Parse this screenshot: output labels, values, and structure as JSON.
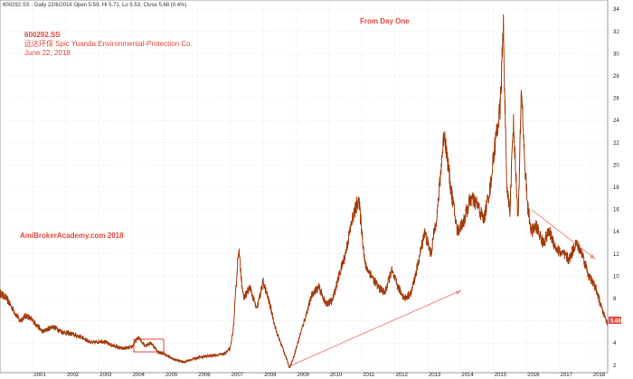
{
  "header_line": "600292.SS - Daily 22/6/2018 Open 5.59, Hi 5.71, Lo 5.53, Close 5.68 (0.4%)",
  "annotations": {
    "ticker": "600292.SS",
    "company": "远达环保 Spic Yuanda Environmental-Protection Co.",
    "date": "June 22, 2018",
    "subtitle": "From Day One",
    "watermark": "AmiBrokerAcademy.com  2018"
  },
  "last_price_label": "5.68",
  "colors": {
    "price_line": "#a33a0a",
    "annotation": "#e8453c",
    "grid": "#d4d4d4",
    "price_box": "#e8453c"
  },
  "chart_data": {
    "type": "line",
    "title": "",
    "xlabel": "",
    "ylabel": "",
    "ylim": [
      1.5,
      34.5
    ],
    "y_ticks": [
      2,
      4,
      6,
      8,
      10,
      12,
      14,
      16,
      18,
      20,
      22,
      24,
      26,
      28,
      30,
      32,
      34
    ],
    "x_ticks": [
      "2001",
      "2002",
      "2003",
      "2004",
      "2005",
      "2006",
      "2007",
      "2008",
      "2009",
      "2010",
      "2011",
      "2012",
      "2013",
      "2014",
      "2015",
      "2016",
      "2017",
      "2018"
    ],
    "grid": true,
    "series": [
      {
        "x": [
          2000.0,
          2000.2,
          2000.4,
          2000.6,
          2000.8,
          2001.0,
          2001.3,
          2001.6,
          2001.9,
          2002.2,
          2002.5,
          2002.8,
          2003.1,
          2003.4,
          2003.7,
          2004.0,
          2004.2,
          2004.4,
          2004.6,
          2004.8,
          2005.0,
          2005.3,
          2005.6,
          2005.9,
          2006.2,
          2006.5,
          2006.8,
          2007.0,
          2007.1,
          2007.25,
          2007.4,
          2007.6,
          2007.8,
          2008.0,
          2008.2,
          2008.4,
          2008.6,
          2008.8,
          2008.9,
          2009.1,
          2009.3,
          2009.5,
          2009.7,
          2009.9,
          2010.1,
          2010.3,
          2010.5,
          2010.7,
          2010.9,
          2011.1,
          2011.3,
          2011.5,
          2011.7,
          2011.9,
          2012.1,
          2012.3,
          2012.5,
          2012.7,
          2012.9,
          2013.1,
          2013.3,
          2013.5,
          2013.7,
          2013.9,
          2014.1,
          2014.3,
          2014.5,
          2014.7,
          2014.9,
          2015.05,
          2015.2,
          2015.3,
          2015.4,
          2015.5,
          2015.6,
          2015.75,
          2015.85,
          2015.95,
          2016.05,
          2016.15,
          2016.3,
          2016.5,
          2016.7,
          2016.9,
          2017.1,
          2017.3,
          2017.5,
          2017.7,
          2017.9,
          2018.1,
          2018.3,
          2018.47
        ],
        "values": [
          8.5,
          8.0,
          7.0,
          6.0,
          6.5,
          6.0,
          5.0,
          5.5,
          5.0,
          4.8,
          4.5,
          4.0,
          4.2,
          3.8,
          3.5,
          3.6,
          4.5,
          3.8,
          4.0,
          3.2,
          3.0,
          2.5,
          2.3,
          2.6,
          2.8,
          2.9,
          3.0,
          3.5,
          5.5,
          12.5,
          8.0,
          9.0,
          7.0,
          9.5,
          7.5,
          5.0,
          3.5,
          1.8,
          2.5,
          4.5,
          6.5,
          8.5,
          9.0,
          7.5,
          7.8,
          10.0,
          12.0,
          15.0,
          17.0,
          11.0,
          10.0,
          9.0,
          8.5,
          10.5,
          9.0,
          8.0,
          8.5,
          11.0,
          14.0,
          12.0,
          16.0,
          23.0,
          18.0,
          14.0,
          15.0,
          17.0,
          16.5,
          15.0,
          18.0,
          22.0,
          25.0,
          32.5,
          18.0,
          16.0,
          24.0,
          15.0,
          27.0,
          20.0,
          16.0,
          14.0,
          14.5,
          13.0,
          14.0,
          12.5,
          12.0,
          11.5,
          13.0,
          12.0,
          10.0,
          9.0,
          7.0,
          5.68
        ]
      }
    ]
  }
}
